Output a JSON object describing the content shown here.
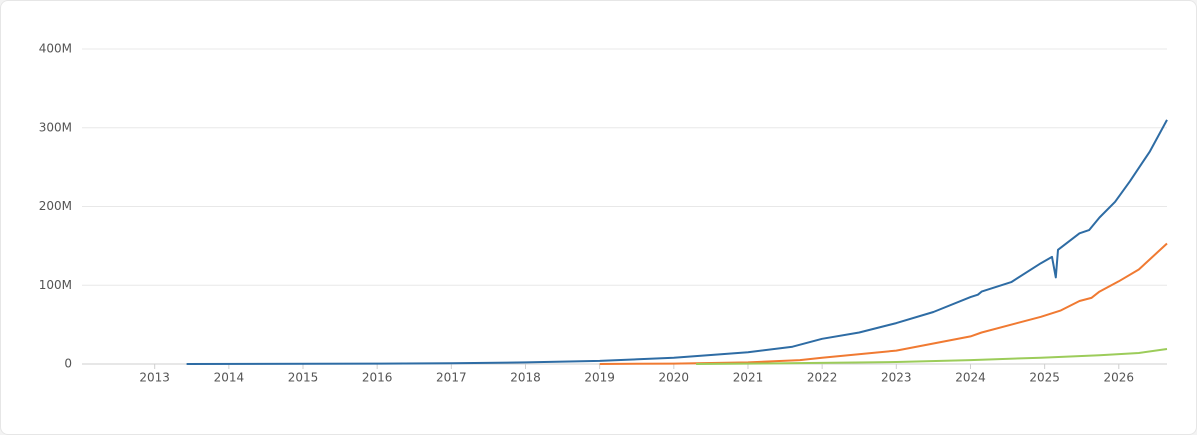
{
  "chart_data": {
    "type": "line",
    "xlim": [
      2012.02,
      2026.65
    ],
    "xticks": [
      2013,
      2014,
      2015,
      2016,
      2017,
      2018,
      2019,
      2020,
      2021,
      2022,
      2023,
      2024,
      2025,
      2026
    ],
    "ylim": [
      0,
      400000000
    ],
    "yticks": [
      0,
      {
        "value": 100000000,
        "label": "100M"
      },
      {
        "value": 200000000,
        "label": "200M"
      },
      {
        "value": 300000000,
        "label": "300M"
      },
      {
        "value": 400000000,
        "label": "400M"
      }
    ],
    "grid": true,
    "series": [
      {
        "color": "#2e6ca4",
        "x": [
          2013.43,
          2016,
          2017,
          2018,
          2019,
          2020,
          2021,
          2021.6,
          2022,
          2022.5,
          2023,
          2023.5,
          2024,
          2024.1,
          2024.15,
          2024.55,
          2024.95,
          2025.1,
          2025.15,
          2025.18,
          2025.47,
          2025.6,
          2025.74,
          2025.95,
          2026.15,
          2026.42,
          2026.65
        ],
        "values": [
          0,
          500000,
          1000000,
          2000000,
          4000000,
          8000000,
          15000000,
          22000000,
          32000000,
          40000000,
          52000000,
          66000000,
          85000000,
          88000000,
          92000000,
          104000000,
          128000000,
          136000000,
          110000000,
          145000000,
          166000000,
          170000000,
          186000000,
          206000000,
          232000000,
          270000000,
          310000000
        ]
      },
      {
        "color": "#f07a32",
        "x": [
          2019,
          2020,
          2021,
          2021.7,
          2022,
          2023,
          2024,
          2024.15,
          2024.95,
          2025.22,
          2025.47,
          2025.63,
          2025.74,
          2026,
          2026.27,
          2026.65
        ],
        "values": [
          0,
          500000,
          2000000,
          5000000,
          8000000,
          17000000,
          35000000,
          40000000,
          60000000,
          68000000,
          80000000,
          84000000,
          92000000,
          105000000,
          120000000,
          153000000
        ]
      },
      {
        "color": "#9ccc5a",
        "x": [
          2020.3,
          2021,
          2023,
          2024,
          2024.95,
          2025.74,
          2026.27,
          2026.65
        ],
        "values": [
          0,
          500000,
          2500000,
          5000000,
          8000000,
          11000000,
          14000000,
          19000000
        ]
      }
    ]
  }
}
